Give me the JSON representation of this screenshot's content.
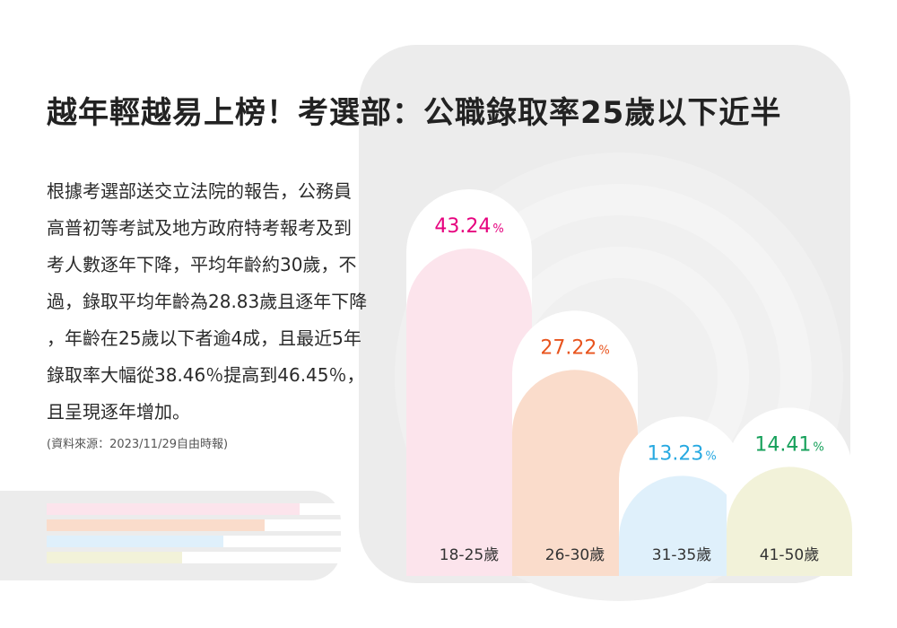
{
  "title": "越年輕越易上榜！考選部：公職錄取率25歲以下近半",
  "body_lines": [
    "根據考選部送交立法院的報告，公務員",
    "高普初等考試及地方政府特考報考及到",
    "考人數逐年下降，平均年齡約30歲，不",
    "過，錄取平均年齡為28.83歲且逐年下降",
    "，年齡在25歲以下者逾4成，且最近5年",
    "錄取率大幅從38.46％提高到46.45％，",
    "且呈現逐年增加。"
  ],
  "source": "(資料來源：2023/11/29自由時報)",
  "colors": {
    "background_panel": "#ececec",
    "series_colors": [
      "#e6007e",
      "#e8541e",
      "#27a9e1",
      "#15a05a"
    ],
    "bar_fills": [
      "#fce4ec",
      "#fadccb",
      "#dff0fb",
      "#f2f2d9"
    ],
    "strip_colors": [
      "#fce4ec",
      "#fadccb",
      "#dff0fb",
      "#f2f2d9"
    ]
  },
  "legend_strips": [
    0.86,
    0.74,
    0.6,
    0.46
  ],
  "chart_data": {
    "type": "bar",
    "categories": [
      "18-25歲",
      "26-30歲",
      "31-35歲",
      "41-50歲"
    ],
    "values": [
      43.24,
      27.22,
      13.23,
      14.41
    ],
    "value_labels": [
      "43.24",
      "27.22",
      "13.23",
      "14.41"
    ],
    "unit": "%",
    "ylim": [
      0,
      50
    ],
    "grid": false,
    "legend": "none"
  }
}
